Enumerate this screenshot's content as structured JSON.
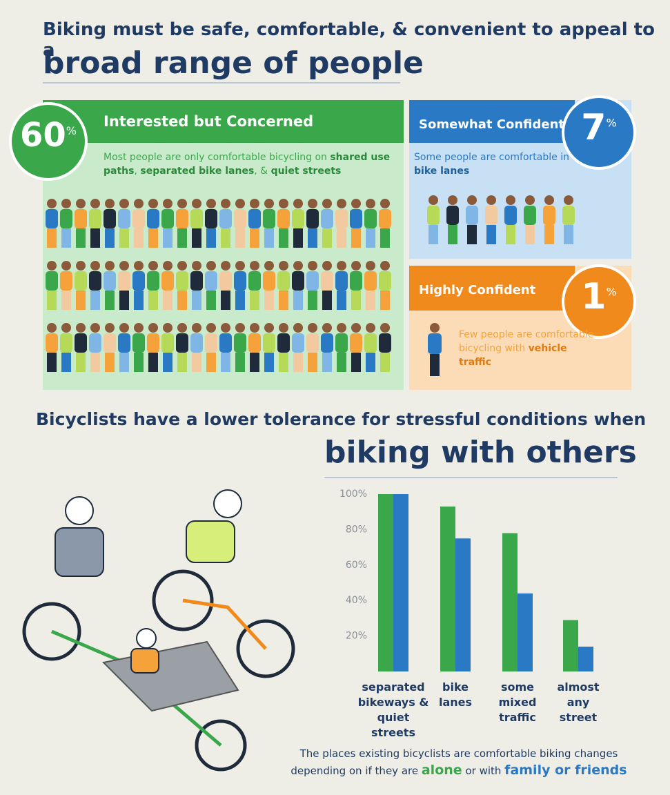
{
  "header": {
    "title_line1": "Biking must be safe, comfortable, & convenient to appeal to a",
    "title_line2": "broad range of people"
  },
  "segments": [
    {
      "name": "Interested but Concerned",
      "percent": 60,
      "unit": "%",
      "description": [
        "Most people are only comfortable bicycling on ",
        "shared use paths",
        ", ",
        "separated bike lanes",
        ", & ",
        "quiet streets"
      ]
    },
    {
      "name": "Somewhat Confident",
      "percent": 7,
      "unit": "%",
      "description": [
        "Some people are comfortable in ",
        "bike lanes"
      ]
    },
    {
      "name": "Highly Confident",
      "percent": 1,
      "unit": "%",
      "description": [
        "Few people are comfortable bicycling with ",
        "vehicle traffic"
      ]
    }
  ],
  "section2": {
    "title_line1": "Bicyclists have a lower tolerance for stressful conditions when",
    "title_line2": "biking with others"
  },
  "chart_data": {
    "type": "bar",
    "categories": [
      "separated bikeways & quiet streets",
      "bike lanes",
      "some mixed traffic",
      "almost any street"
    ],
    "series": [
      {
        "name": "alone",
        "color": "#3aa84a",
        "values": [
          100,
          93,
          78,
          29
        ]
      },
      {
        "name": "family or friends",
        "color": "#2a79c4",
        "values": [
          100,
          75,
          44,
          14
        ]
      }
    ],
    "ylim": [
      0,
      100
    ],
    "yticks": [
      {
        "value": 20,
        "label": "20%"
      },
      {
        "value": 40,
        "label": "40%"
      },
      {
        "value": 60,
        "label": "60%"
      },
      {
        "value": 80,
        "label": "80%"
      },
      {
        "value": 100,
        "label": "100%"
      }
    ],
    "grid": false,
    "caption_before": "The places existing bicyclists are comfortable biking changes depending on if they are",
    "caption_middle": "or with"
  }
}
